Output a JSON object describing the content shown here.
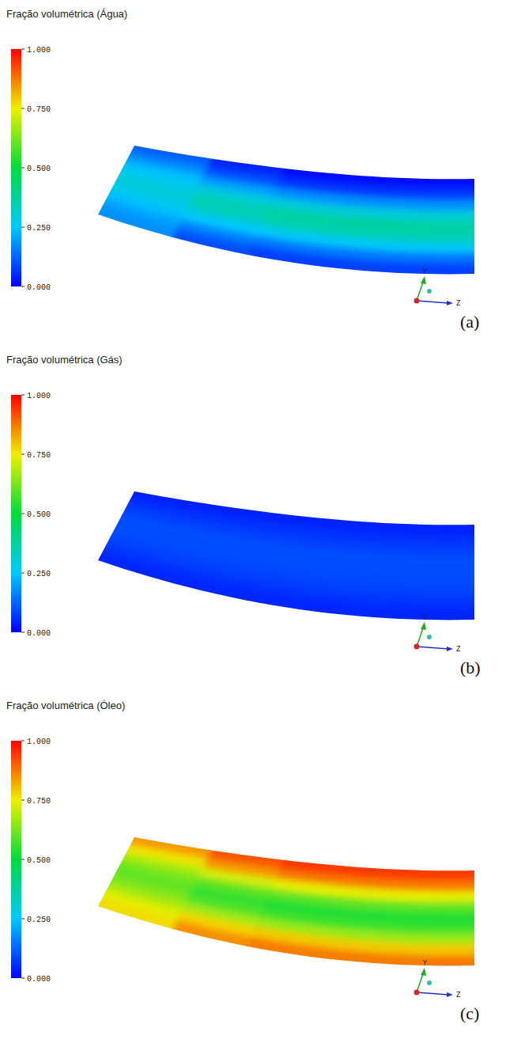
{
  "chart_data": [
    {
      "type": "contour",
      "title": "Fração volumétrica (Água)",
      "label": "(a)",
      "triad": [
        "Y",
        "Z"
      ],
      "colorbar_lim": [
        0,
        1
      ],
      "colorbar_ticks": [
        {
          "value": 0,
          "label": "0.000"
        },
        {
          "value": 0.25,
          "label": "0.250"
        },
        {
          "value": 0.5,
          "label": "0.500"
        },
        {
          "value": 0.75,
          "label": "0.750"
        },
        {
          "value": 1,
          "label": "1.000"
        }
      ],
      "cells": [
        [
          0.12,
          0.05,
          0.02,
          0.02,
          0.02
        ],
        [
          0.18,
          0.1,
          0.07,
          0.07,
          0.07
        ],
        [
          0.24,
          0.2,
          0.18,
          0.18,
          0.18
        ],
        [
          0.28,
          0.3,
          0.3,
          0.3,
          0.3
        ],
        [
          0.3,
          0.35,
          0.37,
          0.37,
          0.37
        ],
        [
          0.28,
          0.33,
          0.35,
          0.35,
          0.35
        ],
        [
          0.24,
          0.25,
          0.26,
          0.26,
          0.26
        ],
        [
          0.2,
          0.16,
          0.15,
          0.15,
          0.15
        ],
        [
          0.18,
          0.1,
          0.08,
          0.08,
          0.08
        ]
      ]
    },
    {
      "type": "contour",
      "title": "Fração volumétrica (Gás)",
      "label": "(b)",
      "triad": [
        "Y",
        "Z"
      ],
      "colorbar_lim": [
        0,
        1
      ],
      "colorbar_ticks": [
        {
          "value": 0,
          "label": "0.000"
        },
        {
          "value": 0.25,
          "label": "0.250"
        },
        {
          "value": 0.5,
          "label": "0.500"
        },
        {
          "value": 0.75,
          "label": "0.750"
        },
        {
          "value": 1,
          "label": "1.000"
        }
      ],
      "cells": [
        [
          0.04,
          0.04,
          0.04,
          0.04,
          0.04
        ],
        [
          0.06,
          0.06,
          0.06,
          0.06,
          0.06
        ],
        [
          0.08,
          0.08,
          0.08,
          0.08,
          0.08
        ],
        [
          0.1,
          0.1,
          0.1,
          0.1,
          0.1
        ],
        [
          0.1,
          0.1,
          0.1,
          0.1,
          0.1
        ],
        [
          0.09,
          0.09,
          0.09,
          0.09,
          0.09
        ],
        [
          0.08,
          0.08,
          0.08,
          0.08,
          0.08
        ],
        [
          0.06,
          0.06,
          0.06,
          0.06,
          0.06
        ],
        [
          0.05,
          0.05,
          0.05,
          0.05,
          0.05
        ]
      ]
    },
    {
      "type": "contour",
      "title": "Fração volumétrica (Óleo)",
      "label": "(c)",
      "triad": [
        "Y",
        "Z"
      ],
      "colorbar_lim": [
        0,
        1
      ],
      "colorbar_ticks": [
        {
          "value": 0,
          "label": "0.000"
        },
        {
          "value": 0.25,
          "label": "0.250"
        },
        {
          "value": 0.5,
          "label": "0.500"
        },
        {
          "value": 0.75,
          "label": "0.750"
        },
        {
          "value": 1,
          "label": "1.000"
        }
      ],
      "cells": [
        [
          0.84,
          0.91,
          0.94,
          0.94,
          0.94
        ],
        [
          0.76,
          0.84,
          0.87,
          0.87,
          0.87
        ],
        [
          0.68,
          0.72,
          0.74,
          0.74,
          0.74
        ],
        [
          0.62,
          0.6,
          0.6,
          0.6,
          0.6
        ],
        [
          0.6,
          0.55,
          0.53,
          0.53,
          0.53
        ],
        [
          0.63,
          0.58,
          0.56,
          0.56,
          0.56
        ],
        [
          0.68,
          0.67,
          0.66,
          0.66,
          0.66
        ],
        [
          0.74,
          0.78,
          0.79,
          0.79,
          0.79
        ],
        [
          0.77,
          0.85,
          0.87,
          0.87,
          0.87
        ]
      ]
    }
  ]
}
